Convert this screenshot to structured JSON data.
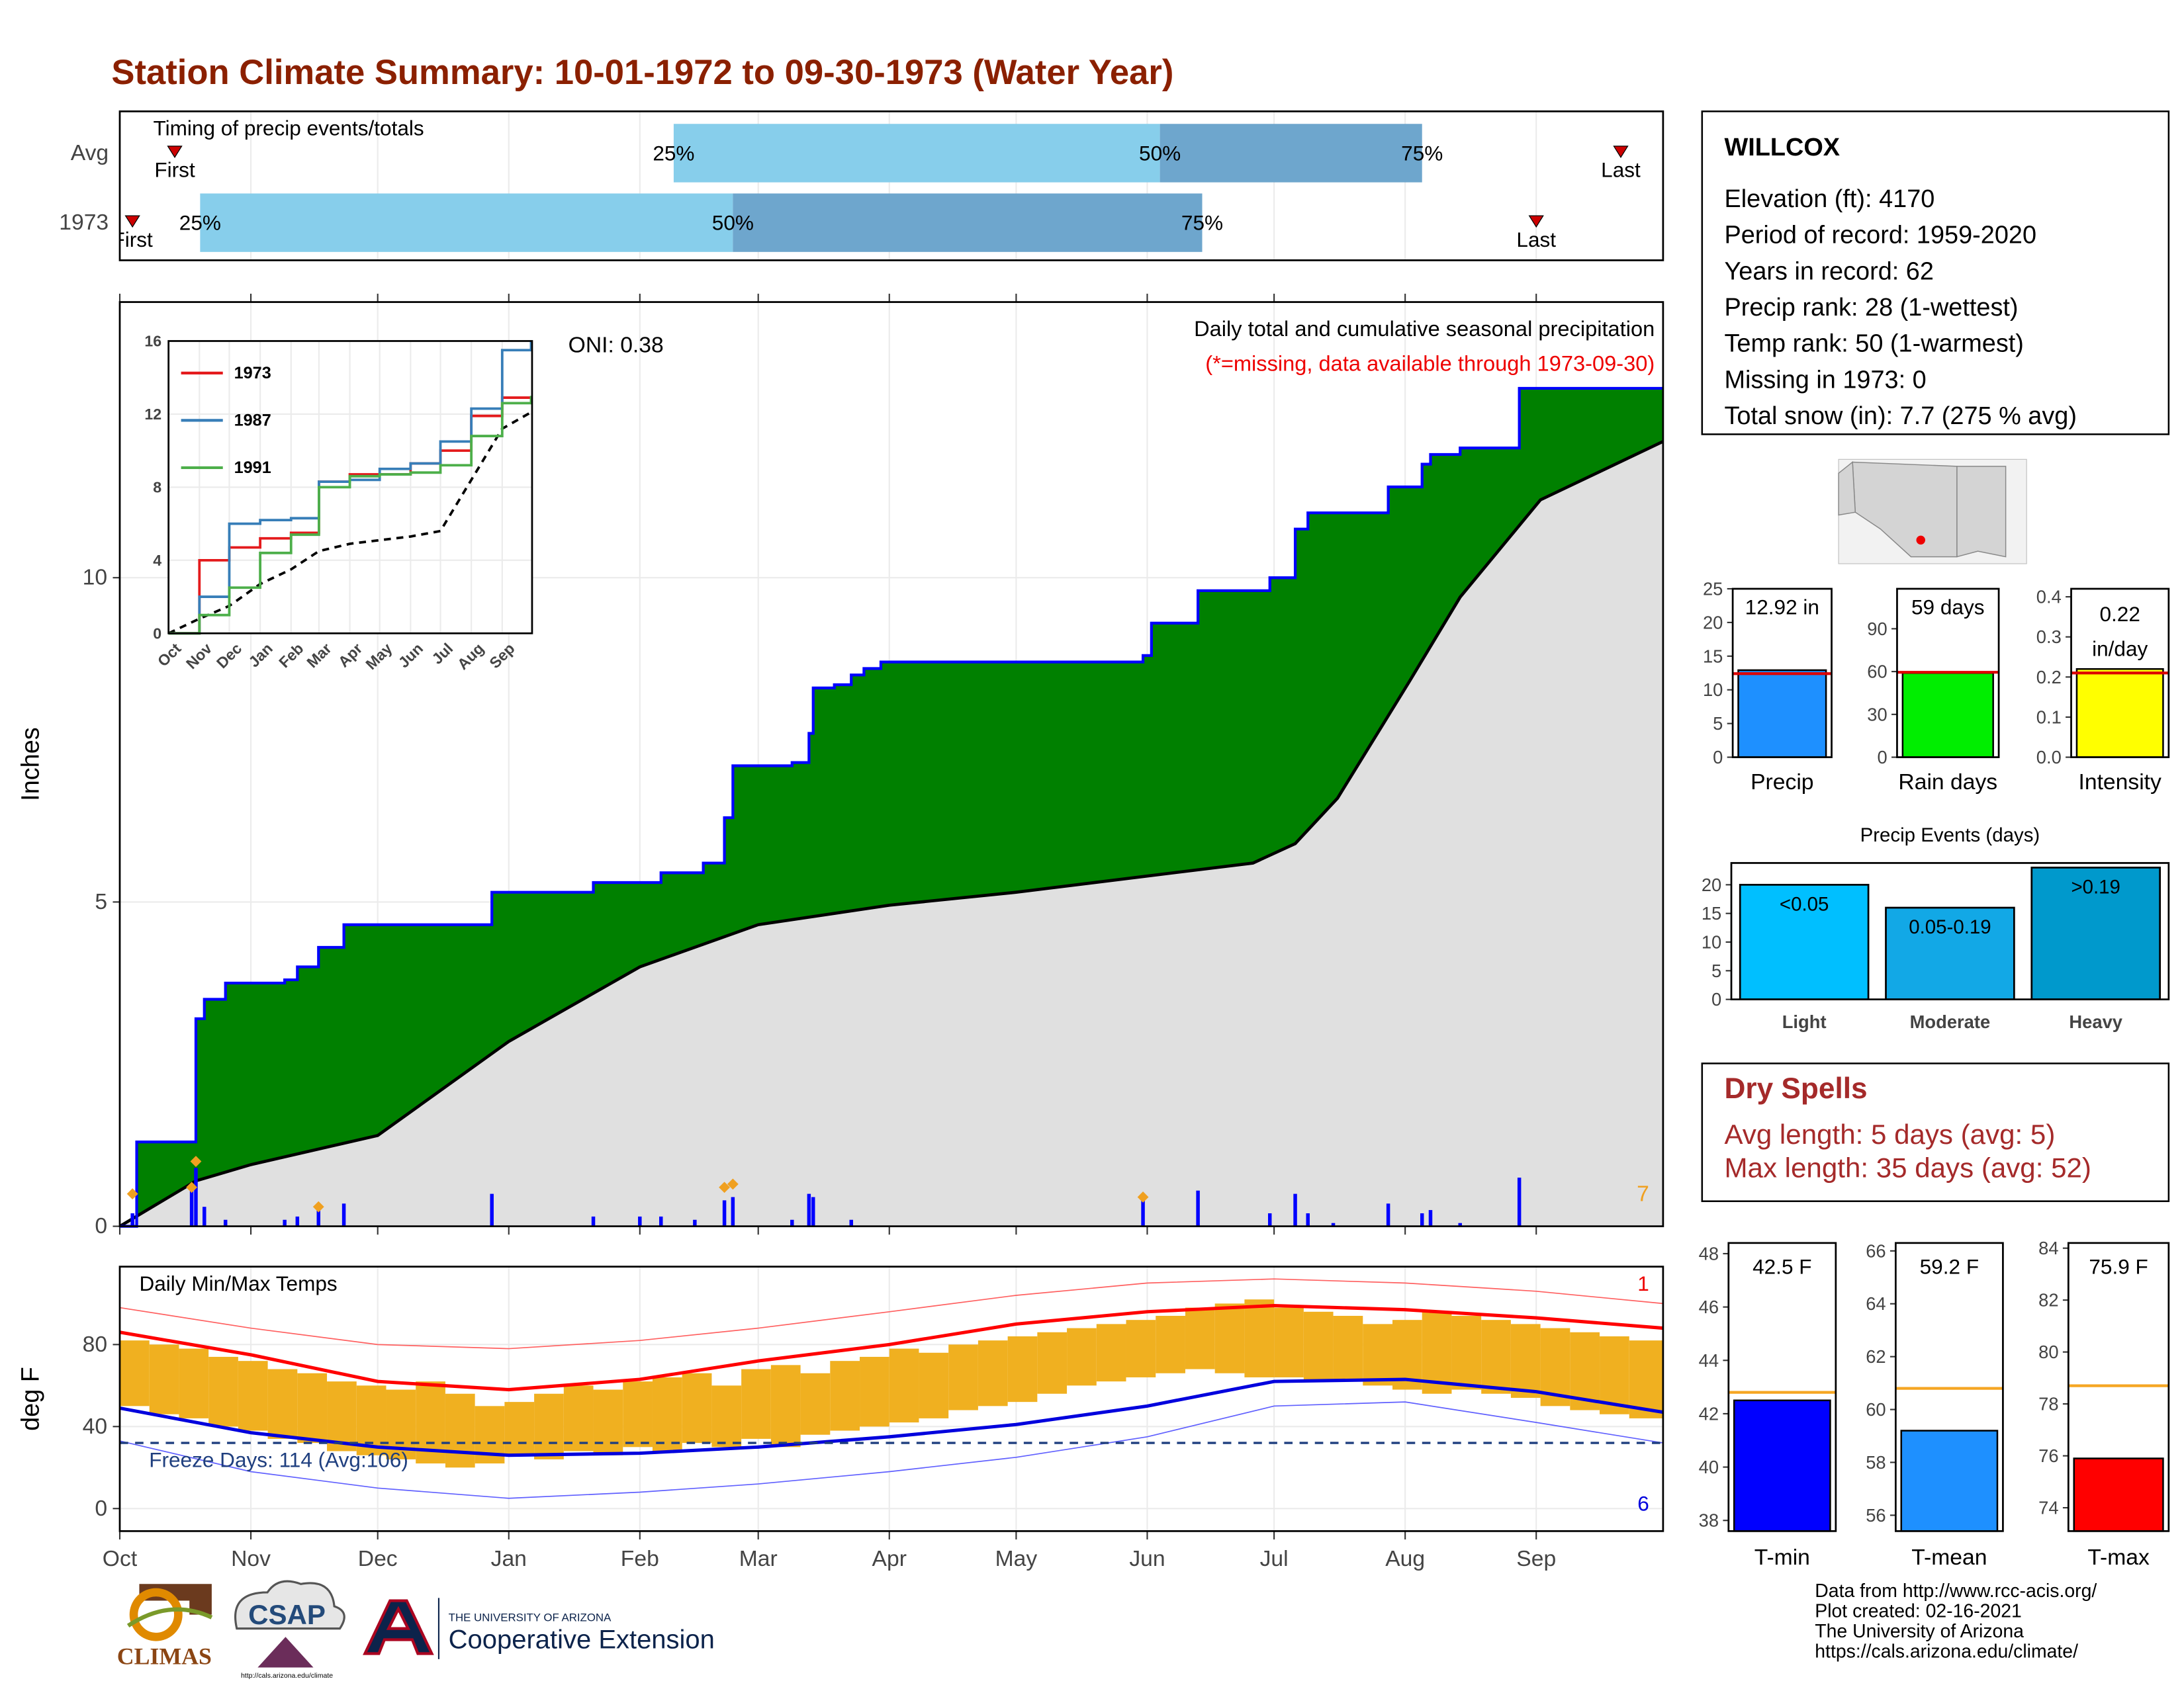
{
  "title": "Station Climate Summary: 10-01-1972 to 09-30-1973 (Water Year)",
  "chart_data": [
    {
      "type": "timing",
      "label": "Timing of precip events/totals",
      "xlim": [
        0,
        365
      ],
      "xticks": [
        0,
        31,
        61,
        92,
        123,
        151,
        182,
        212,
        243,
        273,
        304,
        335
      ],
      "marker_labels": {
        "first": "First",
        "p25": "25%",
        "p50": "50%",
        "p75": "75%",
        "last": "Last"
      },
      "colors": {
        "early": "#87ceeb",
        "late": "#6ea6cd",
        "marker": "#cc0000"
      },
      "rows": [
        {
          "name": "Avg",
          "first": 13,
          "p25": 131,
          "p50": 246,
          "p75": 308,
          "last": 355
        },
        {
          "name": "1973",
          "first": 3,
          "p25": 19,
          "p50": 145,
          "p75": 256,
          "last": 335
        }
      ]
    },
    {
      "type": "cumulative",
      "ylabel": "Inches",
      "xlim": [
        0,
        365
      ],
      "ylim": [
        0,
        14.25
      ],
      "yticks": [
        0,
        5,
        10
      ],
      "xticks": [
        0,
        31,
        61,
        92,
        123,
        151,
        182,
        212,
        243,
        273,
        304,
        335
      ],
      "grid": true,
      "oni": "ONI: 0.38",
      "subtitle": "Daily total and cumulative seasonal precipitation",
      "note": "(*=missing, data available through 1973-09-30)",
      "scale_label": "7",
      "cumulative": {
        "color": "#0000ff",
        "fill": "#008000",
        "x": [
          0,
          4,
          18,
          20,
          25,
          39,
          42,
          47,
          53,
          88,
          112,
          128,
          138,
          143,
          145,
          159,
          163,
          164,
          169,
          173,
          176,
          180,
          242,
          244,
          255,
          272,
          278,
          281,
          300,
          308,
          310,
          317,
          331,
          365
        ],
        "values": [
          0,
          1.3,
          3.2,
          3.5,
          3.75,
          3.8,
          4.0,
          4.3,
          4.65,
          5.15,
          5.3,
          5.45,
          5.6,
          6.3,
          7.1,
          7.15,
          7.6,
          8.3,
          8.35,
          8.5,
          8.6,
          8.7,
          8.8,
          9.3,
          9.8,
          10.0,
          10.75,
          11.0,
          11.4,
          11.75,
          11.9,
          12.0,
          12.92,
          12.92
        ]
      },
      "average": {
        "color": "#000000",
        "fill": "#e0e0e0",
        "x": [
          0,
          18,
          31,
          61,
          92,
          123,
          151,
          182,
          212,
          243,
          268,
          278,
          288,
          305,
          317,
          336,
          365
        ],
        "values": [
          0,
          0.7,
          0.95,
          1.4,
          2.85,
          4.0,
          4.65,
          4.95,
          5.15,
          5.4,
          5.6,
          5.9,
          6.6,
          8.4,
          9.7,
          11.2,
          12.1
        ]
      },
      "daily": {
        "color": "#0000ff",
        "x": [
          3,
          17,
          18,
          20,
          25,
          39,
          42,
          47,
          53,
          88,
          112,
          123,
          128,
          136,
          143,
          145,
          159,
          163,
          164,
          173,
          242,
          255,
          272,
          278,
          281,
          287,
          300,
          308,
          310,
          317,
          331
        ],
        "values": [
          0.2,
          0.6,
          0.9,
          0.3,
          0.1,
          0.1,
          0.15,
          0.3,
          0.35,
          0.5,
          0.15,
          0.15,
          0.15,
          0.1,
          0.4,
          0.45,
          0.1,
          0.5,
          0.45,
          0.1,
          0.4,
          0.55,
          0.2,
          0.5,
          0.2,
          0.05,
          0.35,
          0.2,
          0.25,
          0.05,
          0.75
        ]
      },
      "snow": {
        "color": "#f0a020",
        "x": [
          3,
          17,
          18,
          47,
          143,
          145,
          242
        ],
        "values": [
          0.5,
          0.6,
          1.0,
          0.3,
          0.6,
          0.65,
          0.45
        ]
      }
    },
    {
      "type": "inset",
      "xlim": [
        0,
        365
      ],
      "ylim": [
        0,
        16
      ],
      "yticks": [
        0,
        4,
        8,
        12,
        16
      ],
      "xticks": [
        {
          "value": 0,
          "label": "Oct"
        },
        {
          "value": 31,
          "label": "Nov"
        },
        {
          "value": 61,
          "label": "Dec"
        },
        {
          "value": 92,
          "label": "Jan"
        },
        {
          "value": 123,
          "label": "Feb"
        },
        {
          "value": 151,
          "label": "Mar"
        },
        {
          "value": 182,
          "label": "Apr"
        },
        {
          "value": 212,
          "label": "May"
        },
        {
          "value": 243,
          "label": "Jun"
        },
        {
          "value": 273,
          "label": "Jul"
        },
        {
          "value": 304,
          "label": "Aug"
        },
        {
          "value": 335,
          "label": "Sep"
        }
      ],
      "x": [
        0,
        31,
        61,
        92,
        123,
        151,
        182,
        212,
        243,
        273,
        304,
        335,
        364
      ],
      "series": [
        {
          "name": "1973",
          "color": "#e41a1c",
          "values": [
            0,
            4.0,
            4.7,
            5.2,
            5.5,
            8.3,
            8.7,
            8.7,
            9.3,
            10.0,
            11.9,
            12.9,
            12.9
          ]
        },
        {
          "name": "1987",
          "color": "#377eb8",
          "values": [
            0,
            2.0,
            6.0,
            6.2,
            6.3,
            8.3,
            8.4,
            9.0,
            9.3,
            10.5,
            12.3,
            15.5,
            16.0
          ]
        },
        {
          "name": "1991",
          "color": "#4daf4a",
          "values": [
            0,
            1.0,
            2.5,
            4.4,
            5.4,
            8.0,
            8.6,
            8.7,
            8.8,
            9.2,
            10.8,
            12.6,
            13.0
          ]
        }
      ],
      "average": {
        "color": "#000000",
        "values": [
          0,
          0.8,
          1.5,
          2.7,
          3.5,
          4.5,
          4.9,
          5.1,
          5.3,
          5.6,
          8.4,
          11.2,
          12.1
        ]
      }
    },
    {
      "type": "temp-range",
      "title": "Daily Min/Max Temps",
      "ylabel": "deg F",
      "xlim": [
        0,
        365
      ],
      "ylim": [
        -11,
        118
      ],
      "yticks": [
        0,
        40,
        80
      ],
      "grid": true,
      "xticks": [
        {
          "value": 0,
          "label": "Oct"
        },
        {
          "value": 31,
          "label": "Nov"
        },
        {
          "value": 61,
          "label": "Dec"
        },
        {
          "value": 92,
          "label": "Jan"
        },
        {
          "value": 123,
          "label": "Feb"
        },
        {
          "value": 151,
          "label": "Mar"
        },
        {
          "value": 182,
          "label": "Apr"
        },
        {
          "value": 212,
          "label": "May"
        },
        {
          "value": 243,
          "label": "Jun"
        },
        {
          "value": 273,
          "label": "Jul"
        },
        {
          "value": 304,
          "label": "Aug"
        },
        {
          "value": 335,
          "label": "Sep"
        }
      ],
      "freeze": {
        "value": 32,
        "label": "Freeze Days: 114 (Avg:106)",
        "color": "#1f3f7f"
      },
      "max_count_label": "1",
      "min_count_label": "6",
      "daily": {
        "color": "#f0b020",
        "x": [
          0,
          7,
          14,
          21,
          28,
          35,
          42,
          49,
          56,
          63,
          70,
          77,
          84,
          91,
          98,
          105,
          112,
          119,
          126,
          133,
          140,
          147,
          154,
          161,
          168,
          175,
          182,
          189,
          196,
          203,
          210,
          217,
          224,
          231,
          238,
          245,
          252,
          259,
          266,
          273,
          280,
          287,
          294,
          301,
          308,
          315,
          322,
          329,
          336,
          343,
          350,
          357
        ],
        "max": [
          82,
          80,
          78,
          74,
          72,
          68,
          66,
          62,
          60,
          58,
          62,
          56,
          50,
          52,
          56,
          60,
          58,
          62,
          64,
          66,
          60,
          68,
          70,
          66,
          72,
          74,
          78,
          76,
          80,
          82,
          84,
          86,
          88,
          90,
          92,
          94,
          98,
          100,
          102,
          98,
          96,
          94,
          90,
          92,
          96,
          94,
          92,
          90,
          88,
          86,
          84,
          82
        ],
        "min": [
          50,
          46,
          44,
          40,
          38,
          34,
          32,
          28,
          26,
          24,
          22,
          20,
          22,
          26,
          24,
          28,
          26,
          30,
          28,
          32,
          30,
          34,
          30,
          36,
          38,
          40,
          42,
          44,
          48,
          50,
          52,
          56,
          60,
          62,
          64,
          66,
          68,
          66,
          64,
          64,
          62,
          62,
          60,
          58,
          56,
          58,
          56,
          54,
          50,
          48,
          46,
          44
        ]
      },
      "lines_x": [
        0,
        31,
        61,
        92,
        123,
        151,
        182,
        212,
        243,
        273,
        304,
        335,
        365
      ],
      "normal_max": {
        "color": "#ff0000",
        "values": [
          86,
          75,
          62,
          58,
          63,
          72,
          80,
          90,
          96,
          99,
          97,
          93,
          88
        ]
      },
      "normal_min": {
        "color": "#0000dd",
        "values": [
          49,
          37,
          30,
          26,
          27,
          30,
          35,
          41,
          50,
          62,
          63,
          57,
          47
        ]
      },
      "record_max": {
        "color": "#ff6060",
        "values": [
          98,
          88,
          80,
          78,
          82,
          88,
          96,
          104,
          110,
          112,
          110,
          106,
          100
        ]
      },
      "record_min": {
        "color": "#6060ff",
        "values": [
          33,
          18,
          10,
          5,
          8,
          12,
          18,
          25,
          35,
          50,
          52,
          42,
          32
        ]
      }
    },
    {
      "type": "gauge",
      "xlabel": "Precip",
      "ylim": [
        0,
        25
      ],
      "yticks": [
        0,
        5,
        10,
        15,
        20,
        25
      ],
      "value": 12.92,
      "value_label": "12.92 in",
      "average": 12.4,
      "color": "#1e90ff",
      "average_color": "#dd0000"
    },
    {
      "type": "gauge",
      "xlabel": "Rain days",
      "ylim": [
        0,
        118
      ],
      "yticks": [
        0,
        30,
        60,
        90
      ],
      "value": 59,
      "value_label": "59 days",
      "average": 59.5,
      "color": "#00ee00",
      "average_color": "#dd0000"
    },
    {
      "type": "gauge",
      "xlabel": "Intensity",
      "ylim": [
        0,
        0.42
      ],
      "yticks": [
        {
          "value": 0,
          "label": "0.0"
        },
        {
          "value": 0.1,
          "label": "0.1"
        },
        {
          "value": 0.2,
          "label": "0.2"
        },
        {
          "value": 0.3,
          "label": "0.3"
        },
        {
          "value": 0.4,
          "label": "0.4"
        }
      ],
      "value": 0.22,
      "value_label": "0.22",
      "unit": "in/day",
      "average": 0.21,
      "color": "#ffff00",
      "average_color": "#dd0000"
    },
    {
      "type": "bar",
      "title": "Precip Events (days)",
      "categories": [
        "Light",
        "Moderate",
        "Heavy"
      ],
      "bin_labels": [
        "<0.05",
        "0.05-0.19",
        ">0.19"
      ],
      "values": [
        20,
        16,
        23
      ],
      "colors": [
        "#00bfff",
        "#12a8e6",
        "#0099cc"
      ],
      "ylim": [
        0,
        23.8
      ],
      "yticks": [
        0,
        5,
        10,
        15,
        20
      ]
    },
    {
      "type": "gauge",
      "xlabel": "T-min",
      "ylim": [
        37.6,
        48.4
      ],
      "yticks": [
        38,
        40,
        42,
        44,
        46,
        48
      ],
      "value": 42.5,
      "value_label": "42.5 F",
      "average": 42.8,
      "color": "#0000ff",
      "average_color": "#f5a623"
    },
    {
      "type": "gauge",
      "xlabel": "T-mean",
      "ylim": [
        55.4,
        66.3
      ],
      "yticks": [
        56,
        58,
        60,
        62,
        64,
        66
      ],
      "value": 59.2,
      "value_label": "59.2 F",
      "average": 60.8,
      "color": "#1e90ff",
      "average_color": "#f5a623"
    },
    {
      "type": "gauge",
      "xlabel": "T-max",
      "ylim": [
        73.1,
        84.2
      ],
      "yticks": [
        74,
        76,
        78,
        80,
        82,
        84
      ],
      "value": 75.9,
      "value_label": "75.9 F",
      "average": 78.7,
      "color": "#ff0000",
      "average_color": "#f5a623"
    }
  ],
  "station": {
    "name": "WILLCOX",
    "lines": [
      "Elevation (ft): 4170",
      "Period of record: 1959-2020",
      "Years in record: 62",
      "Precip rank: 28 (1-wettest)",
      "Temp rank: 50 (1-warmest)",
      "Missing in 1973: 0",
      "Total snow (in): 7.7 (275 % avg)"
    ]
  },
  "dry_spells": {
    "title": "Dry Spells",
    "lines": [
      "Avg length: 5 days (avg: 5)",
      "Max length: 35 days (avg: 52)"
    ]
  },
  "credits": [
    "Data from http://www.rcc-acis.org/",
    "Plot created: 02-16-2021",
    "The University of Arizona",
    "https://cals.arizona.edu/climate/"
  ],
  "logos": {
    "climas": "CLIMAS",
    "csap": "CSAP",
    "csap_url": "http://cals.arizona.edu/climate",
    "ua_small": "THE UNIVERSITY OF ARIZONA",
    "ua_big": "Cooperative Extension"
  }
}
